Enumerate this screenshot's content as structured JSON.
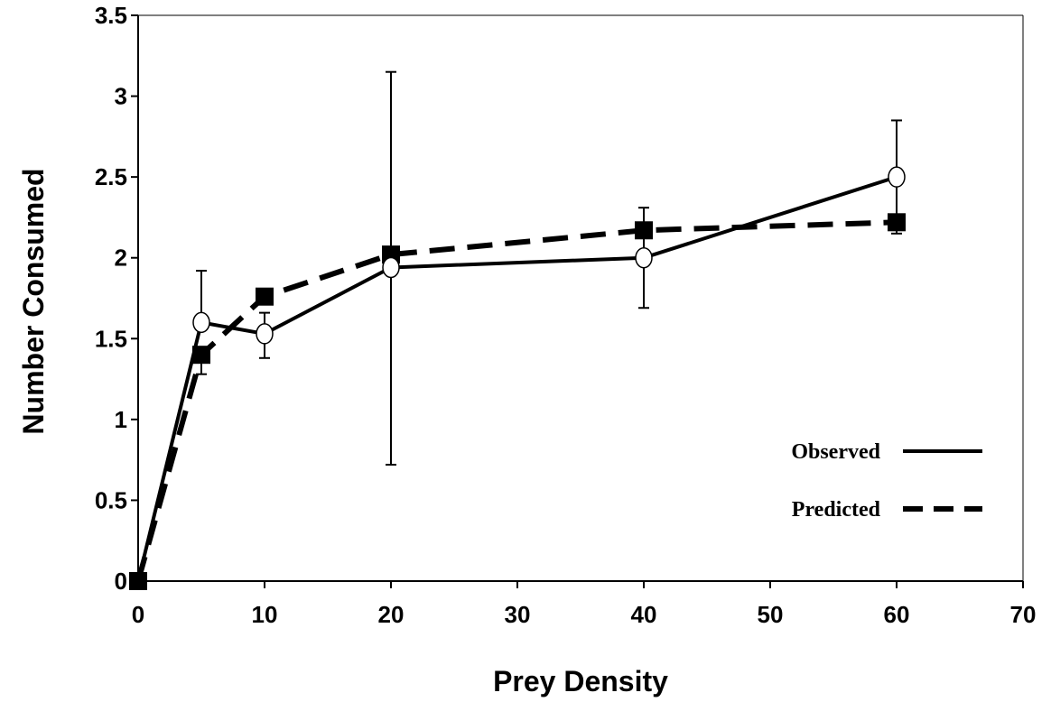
{
  "chart_data": {
    "type": "line",
    "xlabel": "Prey Density",
    "ylabel": "Number Consumed",
    "xlim": [
      0,
      70
    ],
    "ylim": [
      0,
      3.5
    ],
    "xticks": [
      "0",
      "10",
      "20",
      "30",
      "40",
      "50",
      "60",
      "70"
    ],
    "yticks": [
      "0",
      "0.5",
      "1",
      "1.5",
      "2",
      "2.5",
      "3",
      "3.5"
    ],
    "grid": false,
    "legend_position": "lower-right",
    "series": [
      {
        "name": "Observed",
        "style": "solid",
        "marker": "open-circle",
        "color": "#000000",
        "points": [
          {
            "x": 0,
            "y": 0
          },
          {
            "x": 5,
            "y": 1.6,
            "err_lo": 1.6,
            "err_hi": 1.92
          },
          {
            "x": 10,
            "y": 1.53,
            "err_lo": 1.38,
            "err_hi": 1.66
          },
          {
            "x": 20,
            "y": 1.94,
            "err_lo": 0.72,
            "err_hi": 3.15
          },
          {
            "x": 40,
            "y": 2.0,
            "err_lo": 1.69,
            "err_hi": 2.31
          },
          {
            "x": 60,
            "y": 2.5,
            "err_lo": 2.15,
            "err_hi": 2.85
          }
        ]
      },
      {
        "name": "Predicted",
        "style": "dashed",
        "marker": "filled-square",
        "color": "#000000",
        "points": [
          {
            "x": 0,
            "y": 0
          },
          {
            "x": 5,
            "y": 1.4,
            "err_lo": 1.28,
            "err_hi": 1.4
          },
          {
            "x": 10,
            "y": 1.76
          },
          {
            "x": 20,
            "y": 2.02
          },
          {
            "x": 40,
            "y": 2.17
          },
          {
            "x": 60,
            "y": 2.22
          }
        ]
      }
    ]
  }
}
